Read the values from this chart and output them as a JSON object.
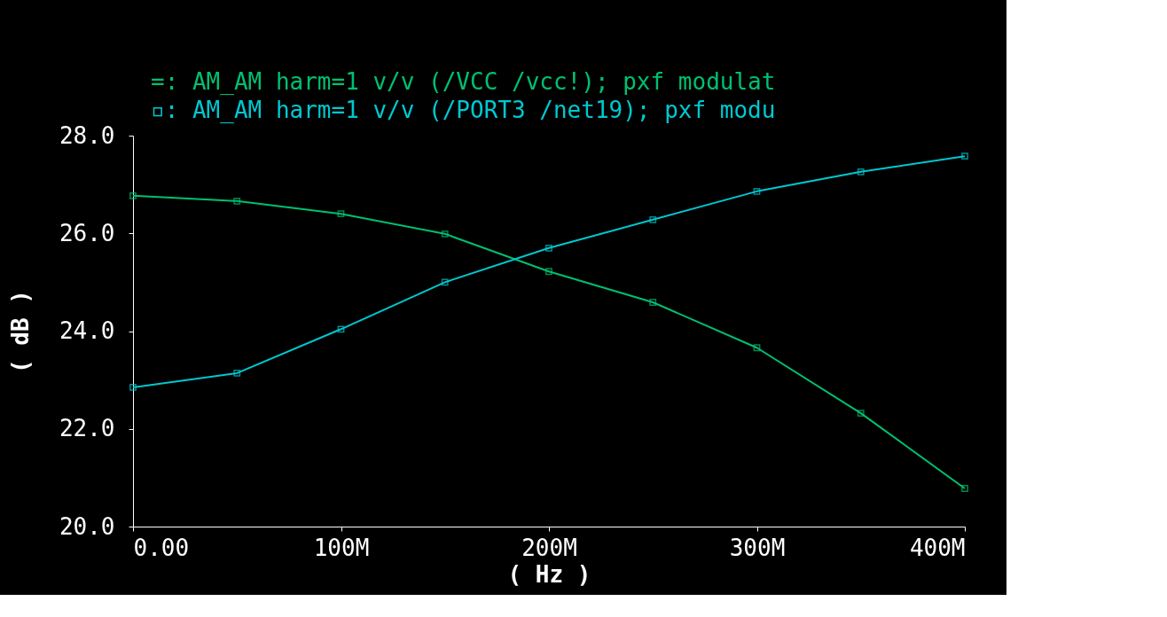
{
  "chart_data": {
    "type": "line",
    "xlabel": "( Hz )",
    "ylabel": "( dB )",
    "x": [
      0,
      50000000,
      100000000,
      150000000,
      200000000,
      250000000,
      300000000,
      350000000,
      400000000
    ],
    "series": [
      {
        "name": "=: AM_AM harm=1 v/v (/VCC /vcc!); pxf modulat",
        "color": "#00c070",
        "values": [
          26.77,
          26.66,
          26.4,
          25.99,
          25.22,
          24.59,
          23.66,
          22.32,
          20.78
        ]
      },
      {
        "name": "▫: AM_AM harm=1 v/v (/PORT3 /net19); pxf modu",
        "color": "#00c8d0",
        "values": [
          22.85,
          23.14,
          24.04,
          25.0,
          25.7,
          26.28,
          26.86,
          27.26,
          27.58
        ]
      }
    ],
    "xlim": [
      0,
      400000000
    ],
    "xticks": [
      {
        "value": 0,
        "label": "0.00"
      },
      {
        "value": 100000000,
        "label": "100M"
      },
      {
        "value": 200000000,
        "label": "200M"
      },
      {
        "value": 300000000,
        "label": "300M"
      },
      {
        "value": 400000000,
        "label": "400M"
      }
    ],
    "ylim": [
      20,
      28
    ],
    "yticks": [
      {
        "value": 20,
        "label": "20.0"
      },
      {
        "value": 22,
        "label": "22.0"
      },
      {
        "value": 24,
        "label": "24.0"
      },
      {
        "value": 26,
        "label": "26.0"
      },
      {
        "value": 28,
        "label": "28.0"
      }
    ],
    "legend": "top",
    "marker": "square",
    "line_style": "solid",
    "grid": false
  }
}
